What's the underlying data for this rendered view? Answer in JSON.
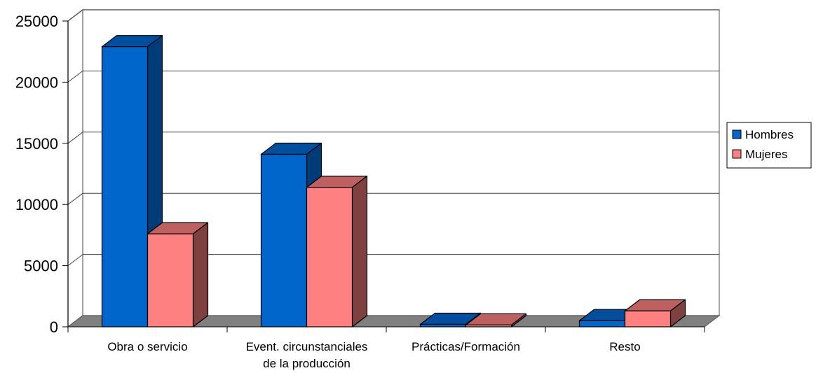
{
  "chart_data": {
    "type": "bar",
    "subtype": "3d-clustered-column",
    "categories": [
      [
        "Obra o servicio"
      ],
      [
        "Event. circunstanciales",
        "de la producción"
      ],
      [
        "Prácticas/Formación"
      ],
      [
        "Resto"
      ]
    ],
    "series": [
      {
        "name": "Hombres",
        "values": [
          22900,
          14100,
          200,
          500
        ]
      },
      {
        "name": "Mujeres",
        "values": [
          7600,
          11400,
          150,
          1300
        ]
      }
    ],
    "yticks": [
      "0",
      "5000",
      "10000",
      "15000",
      "20000",
      "25000"
    ],
    "ylim": [
      0,
      25000
    ],
    "grid": true,
    "legend_position": "right",
    "colors": {
      "Hombres": {
        "front": "#0066cc",
        "side": "#003c78",
        "top": "#004f9e"
      },
      "Mujeres": {
        "front": "#ff8080",
        "side": "#7f4040",
        "top": "#bf6060"
      },
      "wall": "#ffffff",
      "wall_border": "#888888",
      "floor": "#808080",
      "gridline": "#444444"
    }
  }
}
